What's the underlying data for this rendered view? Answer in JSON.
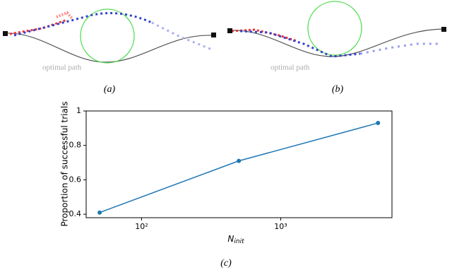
{
  "panels": {
    "a": {
      "caption": "(a)",
      "path_label": "optimal path"
    },
    "b": {
      "caption": "(b)",
      "path_label": "optimal path"
    }
  },
  "chart_data": {
    "type": "line",
    "caption": "(c)",
    "x_label": "N",
    "x_label_subscript": "init",
    "y_label": "Proportion of successful trials",
    "x": [
      50,
      500,
      5000
    ],
    "values": [
      0.41,
      0.71,
      0.93
    ],
    "color": "#1f77b4",
    "xscale": "log",
    "xlim": [
      40,
      6300
    ],
    "xticks": [
      {
        "value": 100,
        "label": "10²"
      },
      {
        "value": 1000,
        "label": "10³"
      }
    ],
    "ylim": [
      0.38,
      1.0
    ],
    "yticks": [
      0.4,
      0.6,
      0.8,
      1.0
    ],
    "grid": false
  }
}
